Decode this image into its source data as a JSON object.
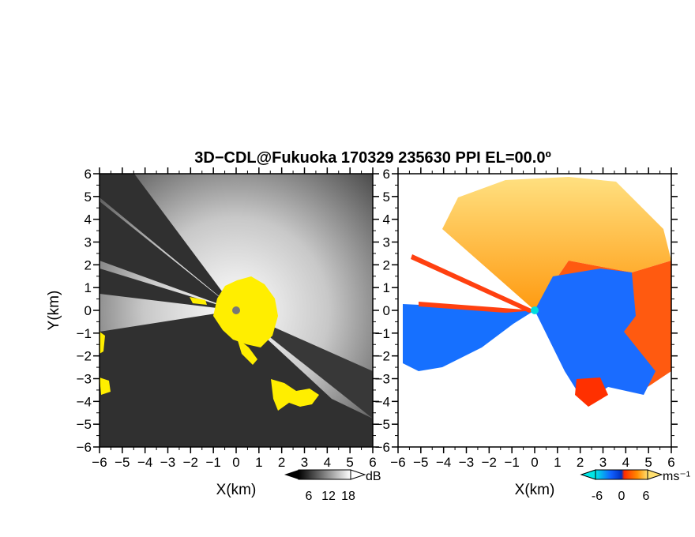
{
  "chart_data": {
    "title": "3D−CDL@Fukuoka 170329 235630 PPI EL=00.0º",
    "panels": [
      {
        "id": "left",
        "type": "heatmap",
        "quantity": "reflectivity-like (greyscale)",
        "xlabel": "X(km)",
        "ylabel": "Y(km)",
        "xlim": [
          -6,
          6
        ],
        "ylim": [
          -6,
          6
        ],
        "ticks": [
          -6,
          -5,
          -4,
          -3,
          -2,
          -1,
          0,
          1,
          2,
          3,
          4,
          5,
          6
        ],
        "colorbar": {
          "unit": "dB",
          "ticks": [
            6,
            12,
            18
          ],
          "colors": [
            "#000000",
            "#ffffff"
          ]
        },
        "overlay_color": "#ffee00"
      },
      {
        "id": "right",
        "type": "heatmap",
        "quantity": "Doppler velocity",
        "xlabel": "X(km)",
        "ylabel": "",
        "xlim": [
          -6,
          6
        ],
        "ylim": [
          -6,
          6
        ],
        "ticks": [
          -6,
          -5,
          -4,
          -3,
          -2,
          -1,
          0,
          1,
          2,
          3,
          4,
          5,
          6
        ],
        "colorbar": {
          "unit": "ms⁻¹",
          "ticks": [
            -6,
            0,
            6
          ],
          "colors": [
            "#00e0e0",
            "#0040ff",
            "#ff2000",
            "#ffe060"
          ]
        }
      }
    ],
    "grid": false
  }
}
